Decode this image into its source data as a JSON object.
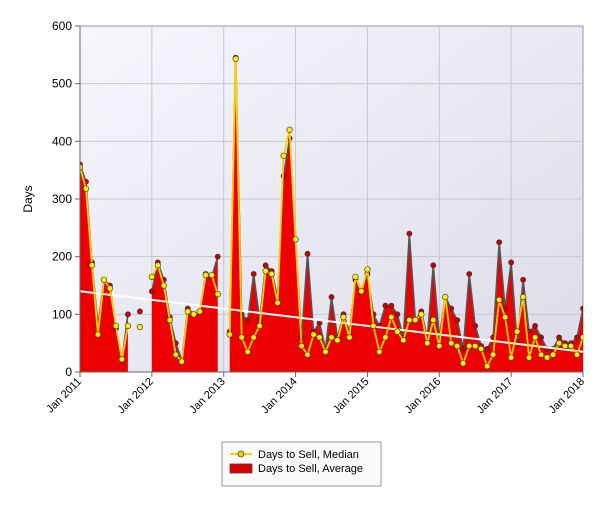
{
  "chart_data": {
    "type": "area",
    "title": "",
    "xlabel": "",
    "ylabel": "Days",
    "ylim": [
      0,
      600
    ],
    "yticks": [
      0,
      100,
      200,
      300,
      400,
      500,
      600
    ],
    "xlim": [
      "2011-01",
      "2018-01"
    ],
    "xticks": [
      "Jan 2011",
      "Jan 2012",
      "Jan 2013",
      "Jan 2014",
      "Jan 2015",
      "Jan 2016",
      "Jan 2017",
      "Jan 2018"
    ],
    "grid": true,
    "legend_position": "bottom-center",
    "x": [
      "2011-01",
      "2011-02",
      "2011-03",
      "2011-04",
      "2011-05",
      "2011-06",
      "2011-07",
      "2011-08",
      "2011-09",
      "2011-10",
      "2011-11",
      "2011-12",
      "2012-01",
      "2012-02",
      "2012-03",
      "2012-04",
      "2012-05",
      "2012-06",
      "2012-07",
      "2012-08",
      "2012-09",
      "2012-10",
      "2012-11",
      "2012-12",
      "2013-01",
      "2013-02",
      "2013-03",
      "2013-04",
      "2013-05",
      "2013-06",
      "2013-07",
      "2013-08",
      "2013-09",
      "2013-10",
      "2013-11",
      "2013-12",
      "2014-01",
      "2014-02",
      "2014-03",
      "2014-04",
      "2014-05",
      "2014-06",
      "2014-07",
      "2014-08",
      "2014-09",
      "2014-10",
      "2014-11",
      "2014-12",
      "2015-01",
      "2015-02",
      "2015-03",
      "2015-04",
      "2015-05",
      "2015-06",
      "2015-07",
      "2015-08",
      "2015-09",
      "2015-10",
      "2015-11",
      "2015-12",
      "2016-01",
      "2016-02",
      "2016-03",
      "2016-04",
      "2016-05",
      "2016-06",
      "2016-07",
      "2016-08",
      "2016-09",
      "2016-10",
      "2016-11",
      "2016-12",
      "2017-01",
      "2017-02",
      "2017-03",
      "2017-04",
      "2017-05",
      "2017-06",
      "2017-07",
      "2017-08",
      "2017-09",
      "2017-10",
      "2017-11",
      "2017-12",
      "2018-01"
    ],
    "series": [
      {
        "name": "Days to Sell, Average",
        "color": "#ee0000",
        "values": [
          360,
          330,
          190,
          80,
          160,
          150,
          75,
          20,
          100,
          null,
          105,
          null,
          140,
          190,
          160,
          95,
          50,
          20,
          110,
          100,
          105,
          170,
          165,
          200,
          null,
          70,
          545,
          100,
          90,
          170,
          90,
          185,
          175,
          130,
          340,
          405,
          230,
          60,
          205,
          70,
          85,
          40,
          130,
          60,
          100,
          70,
          160,
          140,
          170,
          100,
          80,
          115,
          115,
          100,
          60,
          240,
          90,
          105,
          60,
          185,
          60,
          130,
          110,
          90,
          40,
          170,
          80,
          45,
          40,
          60,
          225,
          110,
          190,
          50,
          160,
          70,
          80,
          60,
          40,
          40,
          60,
          50,
          50,
          60,
          110
        ]
      },
      {
        "name": "Days to Sell, Median",
        "color": "#ffcc00",
        "values": [
          355,
          318,
          185,
          65,
          160,
          145,
          80,
          22,
          80,
          null,
          78,
          null,
          165,
          185,
          150,
          90,
          30,
          18,
          105,
          100,
          105,
          168,
          168,
          135,
          null,
          65,
          543,
          60,
          35,
          60,
          80,
          175,
          170,
          120,
          375,
          420,
          230,
          45,
          30,
          65,
          60,
          35,
          60,
          55,
          95,
          60,
          165,
          140,
          178,
          80,
          35,
          60,
          95,
          70,
          55,
          90,
          90,
          100,
          50,
          90,
          45,
          130,
          50,
          45,
          15,
          45,
          45,
          40,
          10,
          30,
          125,
          95,
          25,
          70,
          130,
          25,
          60,
          30,
          25,
          30,
          50,
          45,
          45,
          30,
          60
        ]
      }
    ],
    "trendline": {
      "start": [
        "2011-01",
        140
      ],
      "end": [
        "2018-01",
        35
      ],
      "color": "#ffffff"
    },
    "legend": [
      {
        "label": "Days to Sell, Median",
        "marker": "line-circle",
        "color": "#ffcc00"
      },
      {
        "label": "Days to Sell, Average",
        "marker": "box",
        "color": "#dd0000"
      }
    ]
  },
  "colors": {
    "plot_background": "#ececf6",
    "average_fill": "#ee0000",
    "average_stroke": "#555555",
    "median_line": "#ffcc00",
    "trendline": "#ffffff",
    "grid": "#c8c8c8"
  }
}
